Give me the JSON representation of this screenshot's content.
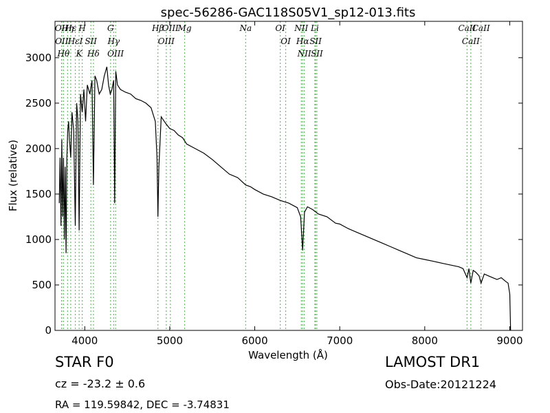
{
  "chart_data": {
    "type": "line",
    "title": "spec-56286-GAC118S05V1_sp12-013.fits",
    "xlabel": "Wavelength (Å)",
    "ylabel": "Flux (relative)",
    "xlim": [
      3650,
      9150
    ],
    "ylim": [
      0,
      3400
    ],
    "xticks": [
      4000,
      5000,
      6000,
      7000,
      8000,
      9000
    ],
    "yticks": [
      0,
      500,
      1000,
      1500,
      2000,
      2500,
      3000
    ],
    "xtick_labels": [
      "4000",
      "5000",
      "6000",
      "7000",
      "8000",
      "9000"
    ],
    "ytick_labels": [
      "0",
      "500",
      "1000",
      "1500",
      "2000",
      "2500",
      "3000"
    ],
    "grid": false,
    "series": [
      {
        "color": "#000000",
        "x": [
          3700,
          3710,
          3720,
          3730,
          3740,
          3750,
          3760,
          3770,
          3780,
          3790,
          3800,
          3810,
          3820,
          3835,
          3850,
          3870,
          3889,
          3905,
          3920,
          3934,
          3950,
          3970,
          3990,
          4010,
          4030,
          4060,
          4085,
          4102,
          4120,
          4140,
          4170,
          4200,
          4230,
          4260,
          4280,
          4300,
          4320,
          4340,
          4352,
          4365,
          4385,
          4420,
          4480,
          4540,
          4600,
          4660,
          4720,
          4780,
          4830,
          4850,
          4861,
          4872,
          4900,
          4950,
          5000,
          5050,
          5100,
          5150,
          5200,
          5300,
          5400,
          5500,
          5600,
          5700,
          5800,
          5893,
          5950,
          6000,
          6100,
          6200,
          6300,
          6400,
          6500,
          6540,
          6563,
          6585,
          6620,
          6680,
          6750,
          6850,
          6950,
          7000,
          7100,
          7200,
          7300,
          7400,
          7500,
          7600,
          7700,
          7800,
          7900,
          8000,
          8100,
          8200,
          8300,
          8400,
          8450,
          8498,
          8520,
          8542,
          8570,
          8600,
          8640,
          8662,
          8700,
          8750,
          8800,
          8850,
          8900,
          8950,
          8980,
          9000,
          9010
        ],
        "values": [
          1400,
          1900,
          1150,
          2100,
          1250,
          1900,
          1000,
          1800,
          850,
          1900,
          2200,
          2300,
          2100,
          1900,
          2400,
          2200,
          1150,
          2500,
          2300,
          1100,
          2600,
          2400,
          2650,
          2300,
          2700,
          2600,
          2750,
          1600,
          2800,
          2750,
          2600,
          2650,
          2800,
          2900,
          2700,
          2600,
          2650,
          2750,
          1400,
          2850,
          2700,
          2650,
          2620,
          2600,
          2550,
          2530,
          2500,
          2450,
          2300,
          1900,
          1250,
          1800,
          2350,
          2280,
          2220,
          2200,
          2150,
          2120,
          2050,
          2000,
          1950,
          1880,
          1800,
          1720,
          1680,
          1600,
          1580,
          1550,
          1500,
          1470,
          1430,
          1400,
          1350,
          1250,
          880,
          1300,
          1360,
          1330,
          1280,
          1250,
          1180,
          1170,
          1120,
          1080,
          1040,
          1000,
          960,
          920,
          880,
          840,
          800,
          780,
          760,
          740,
          720,
          700,
          680,
          580,
          680,
          520,
          660,
          640,
          600,
          520,
          620,
          600,
          580,
          560,
          580,
          540,
          520,
          400,
          0
        ]
      }
    ],
    "lines": [
      {
        "x": 3727,
        "label": "OII"
      },
      {
        "x": 3729,
        "label": "OII"
      },
      {
        "x": 3750,
        "label": "Hθ"
      },
      {
        "x": 3798,
        "label": "Hη"
      },
      {
        "x": 3835,
        "label": "Hε"
      },
      {
        "x": 3889,
        "label": "HεI"
      },
      {
        "x": 3934,
        "label": "K"
      },
      {
        "x": 3970,
        "label": "H"
      },
      {
        "x": 4072,
        "label": "SII"
      },
      {
        "x": 4102,
        "label": "Hδ"
      },
      {
        "x": 4304,
        "label": "G"
      },
      {
        "x": 4340,
        "label": "Hγ"
      },
      {
        "x": 4363,
        "label": "OIII"
      },
      {
        "x": 4861,
        "label": "Hβ"
      },
      {
        "x": 4959,
        "label": "OIII"
      },
      {
        "x": 5007,
        "label": "OIII"
      },
      {
        "x": 5175,
        "label": "Mg"
      },
      {
        "x": 5893,
        "label": "Na"
      },
      {
        "x": 6300,
        "label": "OI"
      },
      {
        "x": 6364,
        "label": "OI"
      },
      {
        "x": 6548,
        "label": "NII"
      },
      {
        "x": 6563,
        "label": "Hα"
      },
      {
        "x": 6583,
        "label": "NII"
      },
      {
        "x": 6707,
        "label": "Li"
      },
      {
        "x": 6716,
        "label": "SII"
      },
      {
        "x": 6731,
        "label": "SII"
      },
      {
        "x": 8498,
        "label": "CaII"
      },
      {
        "x": 8542,
        "label": "CaII"
      },
      {
        "x": 8662,
        "label": "CaII"
      }
    ],
    "line_color": "#60c060"
  },
  "info": {
    "object_class": "STAR   F0",
    "survey": "LAMOST DR1",
    "redshift": "cz = -23.2 ± 0.6",
    "obs_date": "Obs-Date:20121224",
    "coords": "RA = 119.59842, DEC = -3.74831"
  }
}
